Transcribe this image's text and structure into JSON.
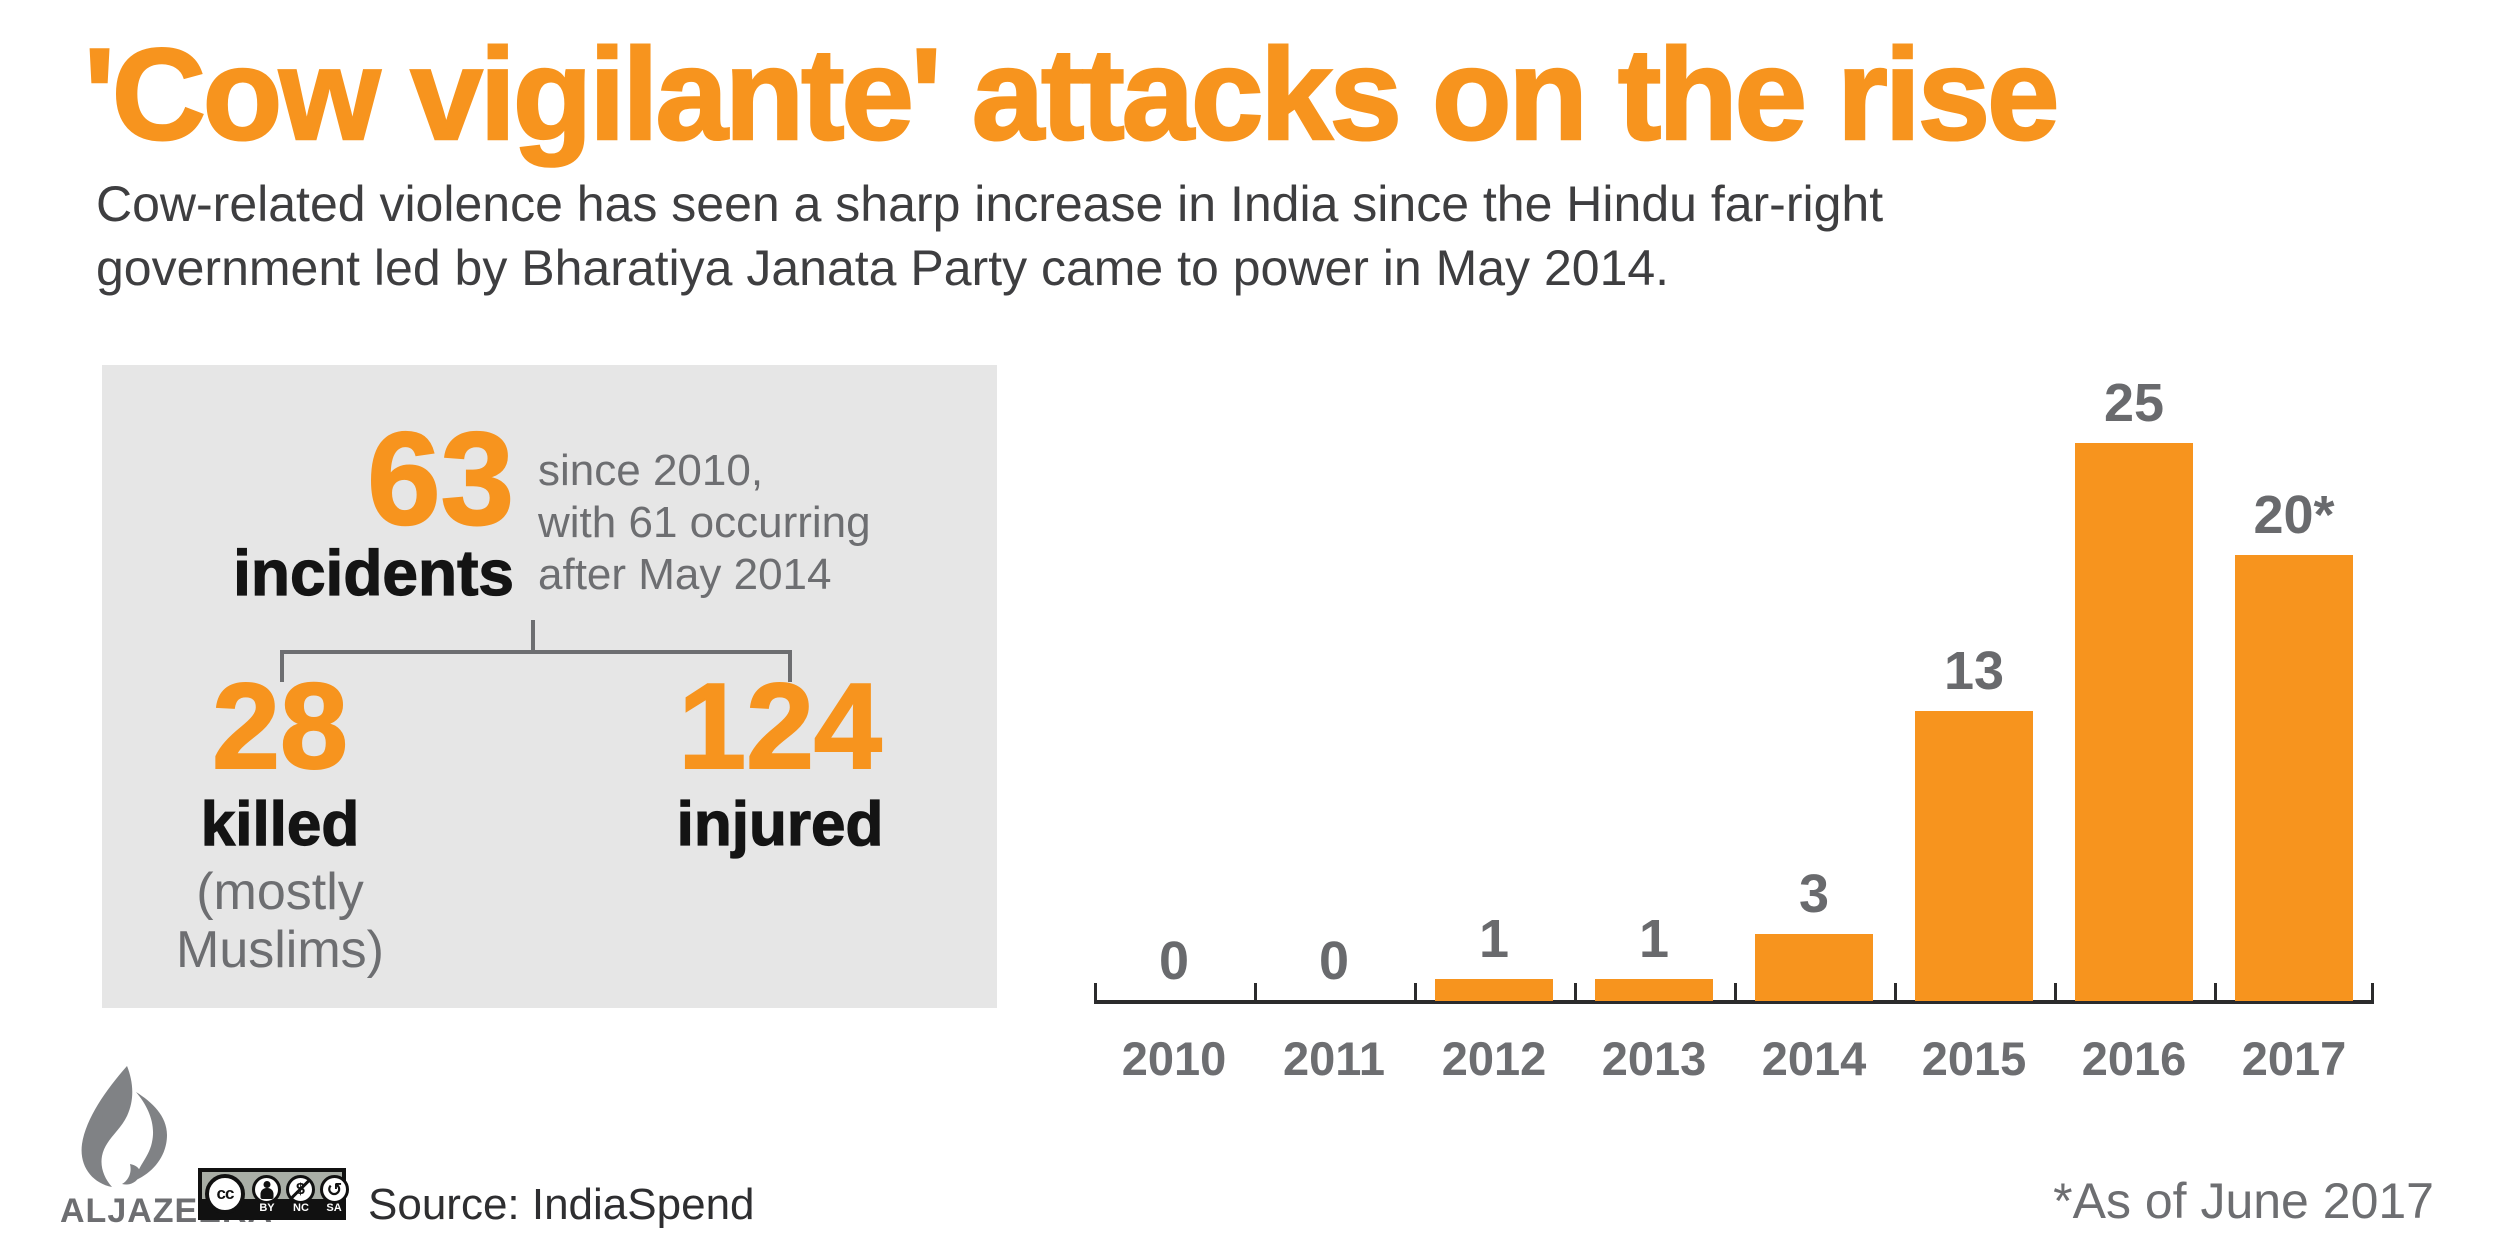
{
  "title": "'Cow vigilante' attacks on the rise",
  "subtitle_line1": "Cow-related violence has seen a sharp increase in India since the Hindu far-right",
  "subtitle_line2": "government led by Bharatiya Janata Party came to power in May 2014.",
  "colors": {
    "accent_orange": "#F7941E",
    "panel_gray": "#E6E6E6",
    "muted_gray_text": "#6D6E71",
    "dark_text": "#3E3E40",
    "black_text": "#141414",
    "axis": "#2B2B2C",
    "logo_gray": "#808285"
  },
  "stats_panel": {
    "headline_number": "63",
    "headline_label": "incidents",
    "headline_note": "since 2010,\nwith 61 occurring\nafter May 2014",
    "breakdown": [
      {
        "value": "28",
        "label": "killed",
        "sublabel": "(mostly\nMuslims)"
      },
      {
        "value": "124",
        "label": "injured",
        "sublabel": ""
      }
    ]
  },
  "chart_data": {
    "type": "bar",
    "title": "",
    "xlabel": "",
    "ylabel": "",
    "categories": [
      "2010",
      "2011",
      "2012",
      "2013",
      "2014",
      "2015",
      "2016",
      "2017"
    ],
    "values": [
      0,
      0,
      1,
      1,
      3,
      13,
      25,
      20
    ],
    "bar_labels": [
      "0",
      "0",
      "1",
      "1",
      "3",
      "13",
      "25",
      "20*"
    ],
    "bar_color": "#F7941E",
    "label_color": "#696A6D",
    "ylim": [
      0,
      25
    ],
    "grid": false,
    "legend": false,
    "annotation": "2017 value is partial, as of June 2017"
  },
  "footnote": "*As of June 2017",
  "footer": {
    "logo_text": "ALJAZEERA",
    "license": {
      "cc": "cc",
      "nc_symbol": "$",
      "sa_symbol": "↺",
      "labels": [
        "BY",
        "NC",
        "SA"
      ]
    },
    "source": "Source: IndiaSpend"
  }
}
